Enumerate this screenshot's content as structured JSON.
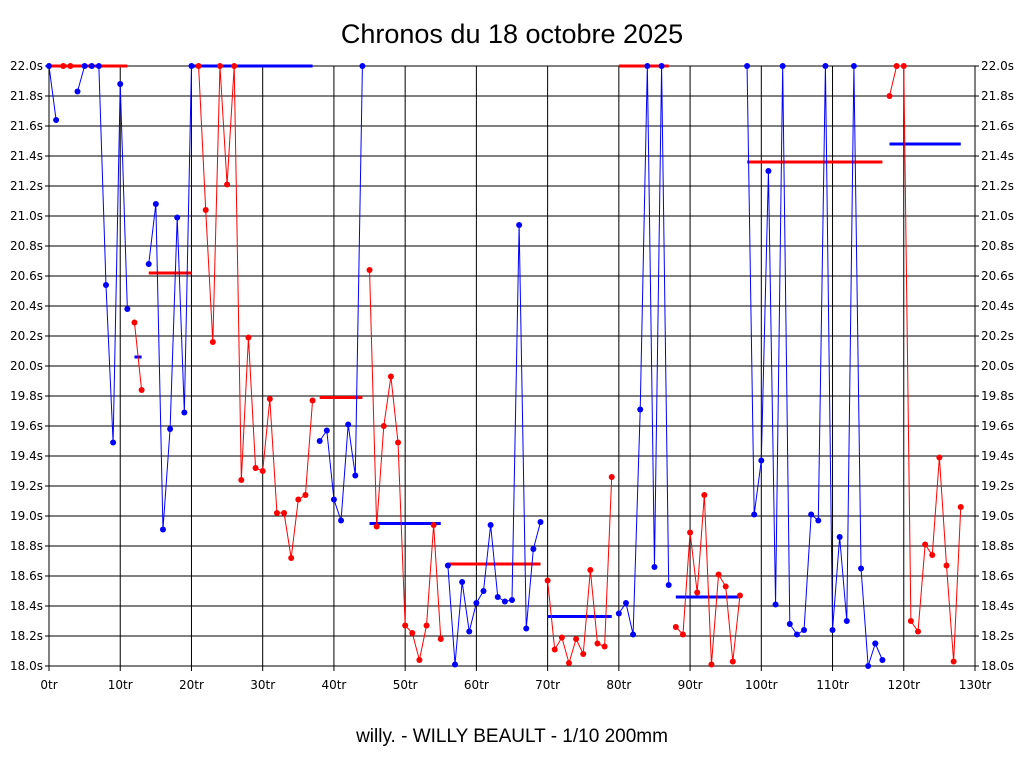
{
  "chart_data": {
    "type": "line",
    "title": "Chronos du 18 octobre 2025",
    "subtitle": "willy. - WILLY BEAULT - 1/10 200mm",
    "xlabel": "",
    "ylabel": "",
    "xlim": [
      0,
      130
    ],
    "ylim": [
      18.0,
      22.0
    ],
    "x_ticks": [
      0,
      10,
      20,
      30,
      40,
      50,
      60,
      70,
      80,
      90,
      100,
      110,
      120,
      130
    ],
    "x_tick_labels": [
      "0tr",
      "10tr",
      "20tr",
      "30tr",
      "40tr",
      "50tr",
      "60tr",
      "70tr",
      "80tr",
      "90tr",
      "100tr",
      "110tr",
      "120tr",
      "130tr"
    ],
    "y_ticks": [
      18.0,
      18.2,
      18.4,
      18.6,
      18.8,
      19.0,
      19.2,
      19.4,
      19.6,
      19.8,
      20.0,
      20.2,
      20.4,
      20.6,
      20.8,
      21.0,
      21.2,
      21.4,
      21.6,
      21.8,
      22.0
    ],
    "y_tick_labels": [
      "18.0s",
      "18.2s",
      "18.4s",
      "18.6s",
      "18.8s",
      "19.0s",
      "19.2s",
      "19.4s",
      "19.6s",
      "19.8s",
      "20.0s",
      "20.2s",
      "20.4s",
      "20.6s",
      "20.8s",
      "21.0s",
      "21.2s",
      "21.4s",
      "21.6s",
      "21.8s",
      "22.0s"
    ],
    "grid": true,
    "legend": "none",
    "colors": {
      "blue": "#0000ff",
      "red": "#ff0000"
    },
    "series": [
      {
        "color": "blue",
        "x": [
          0,
          1
        ],
        "y": [
          22.0,
          21.64
        ]
      },
      {
        "color": "red",
        "x": [
          2,
          3
        ],
        "y": [
          22.0,
          22.0
        ]
      },
      {
        "color": "blue",
        "x": [
          4,
          5,
          6,
          7,
          8,
          9,
          10,
          11
        ],
        "y": [
          21.83,
          22.0,
          22.0,
          22.0,
          20.54,
          19.49,
          21.88,
          20.38
        ]
      },
      {
        "color": "red",
        "x": [
          12,
          13
        ],
        "y": [
          20.29,
          19.84
        ]
      },
      {
        "color": "blue",
        "x": [
          14,
          15,
          16,
          17,
          18,
          19,
          20
        ],
        "y": [
          20.68,
          21.08,
          18.91,
          19.58,
          20.99,
          19.69,
          22.0
        ]
      },
      {
        "color": "red",
        "x": [
          21,
          22,
          23,
          24,
          25,
          26,
          27,
          28,
          29,
          30,
          31,
          32,
          33,
          34,
          35,
          36,
          37
        ],
        "y": [
          22.0,
          21.04,
          20.16,
          22.0,
          21.21,
          22.0,
          19.24,
          20.19,
          19.32,
          19.3,
          19.78,
          19.02,
          19.02,
          18.72,
          19.11,
          19.14,
          19.77
        ]
      },
      {
        "color": "blue",
        "x": [
          38,
          39,
          40,
          41,
          42,
          43,
          44
        ],
        "y": [
          19.5,
          19.57,
          19.11,
          18.97,
          19.61,
          19.27,
          22.0
        ]
      },
      {
        "color": "red",
        "x": [
          45,
          46,
          47,
          48,
          49,
          50,
          51,
          52,
          53,
          54,
          55
        ],
        "y": [
          20.64,
          18.93,
          19.6,
          19.93,
          19.49,
          18.27,
          18.22,
          18.04,
          18.27,
          18.94,
          18.18
        ]
      },
      {
        "color": "blue",
        "x": [
          56,
          57,
          58,
          59,
          60,
          61,
          62,
          63,
          64,
          65,
          66,
          67,
          68,
          69
        ],
        "y": [
          18.67,
          18.01,
          18.56,
          18.23,
          18.42,
          18.5,
          18.94,
          18.46,
          18.43,
          18.44,
          20.94,
          18.25,
          18.78,
          18.96
        ]
      },
      {
        "color": "red",
        "x": [
          70,
          71,
          72,
          73,
          74,
          75,
          76,
          77,
          78,
          79
        ],
        "y": [
          18.57,
          18.11,
          18.19,
          18.02,
          18.18,
          18.08,
          18.64,
          18.15,
          18.13,
          19.26
        ]
      },
      {
        "color": "blue",
        "x": [
          80,
          81,
          82,
          83,
          84,
          85,
          86,
          87
        ],
        "y": [
          18.35,
          18.42,
          18.21,
          19.71,
          22.0,
          18.66,
          22.0,
          18.54
        ]
      },
      {
        "color": "red",
        "x": [
          88,
          89,
          90,
          91,
          92,
          93,
          94,
          95,
          96,
          97
        ],
        "y": [
          18.26,
          18.21,
          18.89,
          18.49,
          19.14,
          18.01,
          18.61,
          18.53,
          18.03,
          18.47
        ]
      },
      {
        "color": "blue",
        "x": [
          98,
          99,
          100,
          101,
          102,
          103,
          104,
          105,
          106,
          107,
          108,
          109,
          110,
          111,
          112,
          113,
          114,
          115,
          116
        ],
        "y": [
          22.0,
          19.01,
          19.37,
          21.3,
          18.41,
          22.0,
          18.28,
          18.21,
          18.24,
          19.01,
          18.97,
          22.0,
          18.24,
          18.86,
          18.3,
          22.0,
          18.65,
          18.0,
          18.15
        ]
      },
      {
        "color": "blue",
        "x": [
          116,
          117
        ],
        "y": [
          18.15,
          18.04
        ]
      },
      {
        "color": "red",
        "x": [
          118,
          119,
          120,
          121,
          122,
          123,
          124,
          125,
          126,
          127,
          128
        ],
        "y": [
          21.8,
          22.0,
          22.0,
          18.3,
          18.23,
          18.81,
          18.74,
          19.39,
          18.67,
          18.03,
          19.06
        ]
      }
    ],
    "averages": [
      {
        "color": "red",
        "x": [
          0,
          11
        ],
        "y": 22.0
      },
      {
        "color": "blue",
        "x": [
          12,
          13
        ],
        "y": 20.06
      },
      {
        "color": "red",
        "x": [
          14,
          20
        ],
        "y": 20.62
      },
      {
        "color": "blue",
        "x": [
          20,
          37
        ],
        "y": 22.0
      },
      {
        "color": "red",
        "x": [
          38,
          44
        ],
        "y": 19.79
      },
      {
        "color": "blue",
        "x": [
          45,
          55
        ],
        "y": 18.95
      },
      {
        "color": "red",
        "x": [
          56,
          69
        ],
        "y": 18.68
      },
      {
        "color": "blue",
        "x": [
          70,
          79
        ],
        "y": 18.33
      },
      {
        "color": "red",
        "x": [
          80,
          87
        ],
        "y": 22.0
      },
      {
        "color": "blue",
        "x": [
          88,
          97
        ],
        "y": 18.46
      },
      {
        "color": "red",
        "x": [
          98,
          117
        ],
        "y": 21.36
      },
      {
        "color": "blue",
        "x": [
          118,
          128
        ],
        "y": 21.48
      }
    ]
  }
}
